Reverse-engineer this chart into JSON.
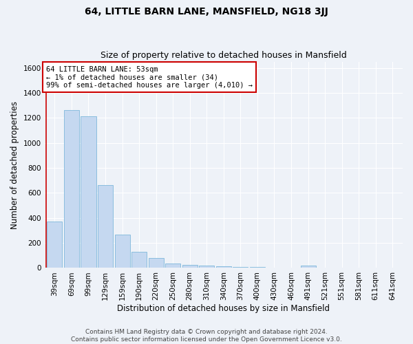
{
  "title": "64, LITTLE BARN LANE, MANSFIELD, NG18 3JJ",
  "subtitle": "Size of property relative to detached houses in Mansfield",
  "xlabel": "Distribution of detached houses by size in Mansfield",
  "ylabel": "Number of detached properties",
  "categories": [
    "39sqm",
    "69sqm",
    "99sqm",
    "129sqm",
    "159sqm",
    "190sqm",
    "220sqm",
    "250sqm",
    "280sqm",
    "310sqm",
    "340sqm",
    "370sqm",
    "400sqm",
    "430sqm",
    "460sqm",
    "491sqm",
    "521sqm",
    "551sqm",
    "581sqm",
    "611sqm",
    "641sqm"
  ],
  "values": [
    370,
    1265,
    1215,
    665,
    265,
    130,
    82,
    35,
    25,
    18,
    15,
    10,
    10,
    0,
    0,
    20,
    0,
    0,
    0,
    0,
    0
  ],
  "bar_color": "#c5d8f0",
  "bar_edge_color": "#6baed6",
  "highlight_line_color": "#cc0000",
  "annotation_text": "64 LITTLE BARN LANE: 53sqm\n← 1% of detached houses are smaller (34)\n99% of semi-detached houses are larger (4,010) →",
  "annotation_box_color": "#ffffff",
  "annotation_box_edge_color": "#cc0000",
  "ylim": [
    0,
    1650
  ],
  "yticks": [
    0,
    200,
    400,
    600,
    800,
    1000,
    1200,
    1400,
    1600
  ],
  "footer_line1": "Contains HM Land Registry data © Crown copyright and database right 2024.",
  "footer_line2": "Contains public sector information licensed under the Open Government Licence v3.0.",
  "title_fontsize": 10,
  "subtitle_fontsize": 9,
  "axis_label_fontsize": 8.5,
  "tick_fontsize": 7.5,
  "annotation_fontsize": 7.5,
  "footer_fontsize": 6.5,
  "bg_color": "#eef2f8",
  "plot_bg_color": "#eef2f8",
  "grid_color": "#ffffff",
  "bar_width": 0.9
}
